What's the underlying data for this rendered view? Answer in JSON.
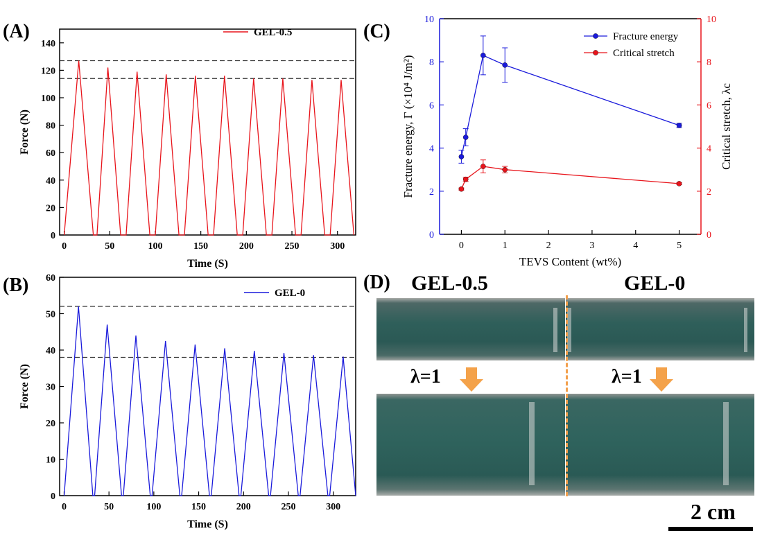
{
  "panel_labels": {
    "A": "(A)",
    "B": "(B)",
    "C": "(C)",
    "D": "(D)"
  },
  "chart_data": [
    {
      "id": "A",
      "type": "line",
      "xlabel": "Time (S)",
      "ylabel": "Force (N)",
      "xlim": [
        -5,
        320
      ],
      "ylim": [
        0,
        150
      ],
      "xticks": [
        0,
        50,
        100,
        150,
        200,
        250,
        300
      ],
      "yticks": [
        0,
        20,
        40,
        60,
        80,
        100,
        120,
        140
      ],
      "legend": {
        "position": "top-right",
        "entries": [
          "GEL-0.5"
        ]
      },
      "reference_lines": [
        127,
        114
      ],
      "color": "#e8141b",
      "series": [
        {
          "name": "GEL-0.5",
          "x": [
            0,
            16,
            32,
            36,
            48,
            62,
            68,
            80,
            94,
            100,
            112,
            126,
            132,
            144,
            158,
            164,
            176,
            190,
            196,
            208,
            222,
            228,
            240,
            254,
            260,
            272,
            286,
            292,
            304,
            318
          ],
          "y": [
            0,
            127,
            0,
            0,
            122,
            0,
            0,
            119,
            0,
            0,
            117,
            0,
            0,
            116,
            0,
            0,
            116,
            0,
            0,
            114,
            0,
            0,
            114,
            0,
            0,
            113,
            0,
            0,
            113,
            0
          ]
        }
      ]
    },
    {
      "id": "B",
      "type": "line",
      "xlabel": "Time (S)",
      "ylabel": "Force (N)",
      "xlim": [
        -5,
        325
      ],
      "ylim": [
        0,
        60
      ],
      "xticks": [
        0,
        50,
        100,
        150,
        200,
        250,
        300
      ],
      "yticks": [
        0,
        10,
        20,
        30,
        40,
        50,
        60
      ],
      "legend": {
        "position": "top-right",
        "entries": [
          "GEL-0"
        ]
      },
      "reference_lines": [
        52,
        38
      ],
      "color": "#1a1adb",
      "series": [
        {
          "name": "GEL-0",
          "x": [
            0,
            16,
            32,
            34,
            48,
            64,
            66,
            80,
            96,
            98,
            113,
            129,
            131,
            146,
            162,
            164,
            179,
            195,
            197,
            212,
            228,
            230,
            245,
            261,
            263,
            278,
            294,
            296,
            311,
            325
          ],
          "y": [
            0,
            52,
            0,
            0,
            47,
            0,
            0,
            44,
            0,
            0,
            42.5,
            0,
            0,
            41.5,
            0,
            0,
            40.5,
            0,
            0,
            39.8,
            0,
            0,
            39.2,
            0,
            0,
            38.6,
            0,
            0,
            38.2,
            0
          ]
        }
      ]
    },
    {
      "id": "C",
      "type": "line",
      "xlabel": "TEVS Content (wt%)",
      "ylabel_left": "Fracture energy, Γ (×10⁴ J/m²)",
      "ylabel_right": "Critical stretch, λc",
      "xlim": [
        -0.5,
        5.5
      ],
      "ylim_left": [
        0,
        10
      ],
      "ylim_right": [
        0,
        10
      ],
      "xticks": [
        0,
        1,
        2,
        3,
        4,
        5
      ],
      "yticks": [
        0,
        2,
        4,
        6,
        8,
        10
      ],
      "legend": {
        "position": "top-right",
        "entries": [
          "Fracture energy",
          "Critical stretch"
        ]
      },
      "series": [
        {
          "name": "Fracture energy",
          "axis": "left",
          "color": "#1a1adb",
          "x": [
            0,
            0.1,
            0.5,
            1,
            5
          ],
          "y": [
            3.6,
            4.5,
            8.3,
            7.85,
            5.05
          ],
          "err": [
            0.3,
            0.4,
            0.9,
            0.8,
            0.1
          ]
        },
        {
          "name": "Critical stretch",
          "axis": "right",
          "color": "#e8141b",
          "x": [
            0,
            0.1,
            0.5,
            1,
            5
          ],
          "y": [
            2.1,
            2.55,
            3.15,
            3.0,
            2.35
          ],
          "err": [
            0.05,
            0.1,
            0.3,
            0.15,
            0.05
          ]
        }
      ]
    }
  ],
  "photo": {
    "left_title": "GEL-0.5",
    "right_title": "GEL-0",
    "stretch_left": "λ=1",
    "stretch_right": "λ=1",
    "scale_label": "2 cm",
    "arrow_color": "#f4a24a"
  }
}
